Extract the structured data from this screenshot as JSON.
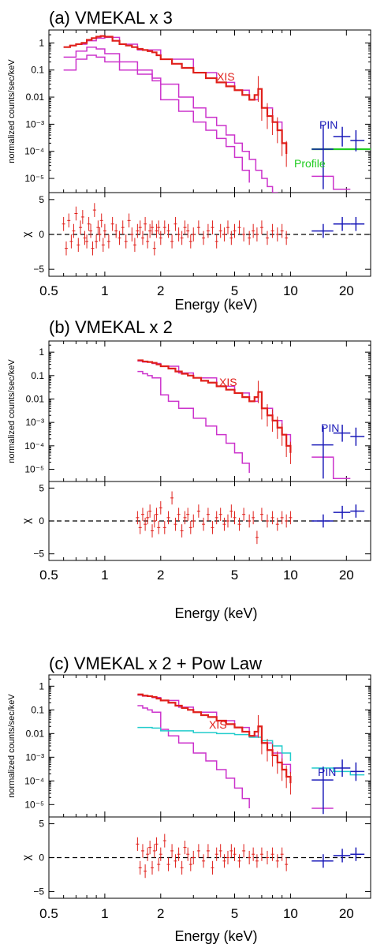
{
  "colors": {
    "xis": "#e0201b",
    "model": "#cc33cc",
    "pin": "#1a1ab8",
    "profile": "#22cc22",
    "powlaw": "#22cccc",
    "axis": "#000000"
  },
  "shared_axes": {
    "x_tick_labels": [
      "0.5",
      "1",
      "2",
      "5",
      "10",
      "20"
    ],
    "xlabel": "Energy (keV)",
    "ylabel_top": "normalized counts/sec/keV",
    "ylabel_bottom": "χ",
    "y_tick_labels_top": [
      "1",
      "0.1",
      "0.01",
      "10⁻³",
      "10⁻⁴",
      "10⁻⁵"
    ],
    "y_tick_labels_bottom": [
      "5",
      "0",
      "−5"
    ]
  },
  "chart_data": [
    {
      "type": "line",
      "title": "(a) VMEKAL x 3",
      "xlabel": "Energy (keV)",
      "ylabel": "normalized counts/sec/keV",
      "xscale": "log",
      "yscale": "log",
      "xlim": [
        0.5,
        27
      ],
      "ylim": [
        3e-06,
        3
      ],
      "annotations": [
        "XIS",
        "PIN",
        "Profile"
      ],
      "xis": {
        "x": [
          0.6,
          0.65,
          0.7,
          0.75,
          0.8,
          0.85,
          0.9,
          0.95,
          1.0,
          1.1,
          1.2,
          1.3,
          1.4,
          1.5,
          1.6,
          1.7,
          1.8,
          1.9,
          2.0,
          2.3,
          2.6,
          3.0,
          3.5,
          4.0,
          4.5,
          5.0,
          5.5,
          6.0,
          6.4,
          6.7,
          7.0,
          7.5,
          8.0,
          8.5,
          9.0,
          9.5
        ],
        "y": [
          0.7,
          0.8,
          0.9,
          1.0,
          1.3,
          1.5,
          1.7,
          1.8,
          1.7,
          1.2,
          0.9,
          0.8,
          0.7,
          0.6,
          0.55,
          0.5,
          0.45,
          0.35,
          0.25,
          0.17,
          0.12,
          0.08,
          0.05,
          0.035,
          0.025,
          0.018,
          0.012,
          0.008,
          0.012,
          0.02,
          0.004,
          0.002,
          0.0012,
          0.0006,
          0.0002,
          8e-05
        ]
      },
      "models": [
        {
          "x": [
            0.6,
            0.65,
            0.7,
            0.8,
            0.9,
            1.0,
            1.2,
            1.5,
            2.0,
            3.0,
            4.0,
            5.0,
            6.0,
            6.7,
            7.0,
            8.0,
            9.0,
            9.5
          ],
          "y": [
            0.7,
            0.8,
            0.9,
            1.2,
            1.5,
            1.6,
            0.9,
            0.55,
            0.25,
            0.08,
            0.035,
            0.018,
            0.008,
            0.02,
            0.004,
            0.0012,
            0.0002,
            8e-05
          ]
        },
        {
          "x": [
            0.6,
            0.7,
            0.8,
            0.9,
            1.0,
            1.2,
            1.5,
            1.8,
            2.0,
            2.5,
            3.0,
            3.5,
            4.0,
            4.5,
            5.0,
            5.5,
            6.0
          ],
          "y": [
            0.3,
            0.5,
            0.7,
            0.6,
            0.4,
            0.2,
            0.1,
            0.05,
            0.008,
            0.003,
            0.0012,
            0.0006,
            0.0003,
            0.00015,
            6e-05,
            2e-05,
            7e-06
          ]
        },
        {
          "x": [
            0.6,
            0.7,
            0.8,
            0.9,
            1.0,
            1.2,
            1.5,
            1.8,
            2.0,
            2.5,
            3.0,
            3.5,
            4.0,
            4.5,
            5.0,
            5.5,
            6.0,
            6.5,
            7.0,
            7.5,
            8.0,
            8.5,
            9.0
          ],
          "y": [
            0.1,
            0.25,
            0.35,
            0.3,
            0.2,
            0.1,
            0.07,
            0.04,
            0.03,
            0.01,
            0.004,
            0.0018,
            0.0009,
            0.0004,
            0.0002,
            0.0001,
            5e-05,
            2e-05,
            1e-05,
            5e-06,
            3e-06,
            2e-06,
            1e-06
          ]
        }
      ],
      "pin": {
        "x": [
          15,
          19,
          22.5
        ],
        "y": [
          0.00012,
          0.00035,
          0.00025
        ],
        "xerr": [
          [
            13,
            17
          ],
          [
            17,
            21
          ],
          [
            21,
            25
          ]
        ],
        "yerr": [
          [
            4e-06,
            0.0009
          ],
          [
            0.00015,
            0.0008
          ],
          [
            0.0001,
            0.0006
          ]
        ]
      },
      "pin_model": {
        "x": [
          13,
          17,
          17,
          21
        ],
        "y": [
          1.2e-05,
          1.2e-05,
          4e-06,
          4e-06
        ]
      },
      "profile": {
        "x": [
          13,
          27
        ],
        "y": [
          0.00012,
          0.00012
        ]
      },
      "residuals": {
        "ylim": [
          -6,
          6
        ],
        "xis_x": [
          0.6,
          0.62,
          0.64,
          0.66,
          0.68,
          0.7,
          0.72,
          0.74,
          0.76,
          0.78,
          0.8,
          0.82,
          0.84,
          0.86,
          0.88,
          0.9,
          0.92,
          0.94,
          0.96,
          0.98,
          1.0,
          1.05,
          1.1,
          1.15,
          1.2,
          1.25,
          1.3,
          1.35,
          1.4,
          1.45,
          1.5,
          1.55,
          1.6,
          1.65,
          1.7,
          1.75,
          1.8,
          1.85,
          1.9,
          1.95,
          2.0,
          2.1,
          2.2,
          2.3,
          2.4,
          2.5,
          2.6,
          2.7,
          2.8,
          2.9,
          3.0,
          3.2,
          3.4,
          3.6,
          3.8,
          4.0,
          4.2,
          4.4,
          4.6,
          4.8,
          5.0,
          5.3,
          5.6,
          6.0,
          6.3,
          6.6,
          7.0,
          7.5,
          8.0,
          8.5,
          9.0,
          9.5
        ],
        "xis_y": [
          1.5,
          -2,
          2,
          -1,
          0.5,
          3,
          -1.5,
          1,
          2.5,
          -0.5,
          -1,
          1.5,
          0.5,
          -2,
          3.5,
          -1,
          1,
          0,
          2,
          -1.5,
          0.5,
          -1,
          1.5,
          0.5,
          -0.5,
          1,
          -1,
          2,
          0,
          -1.5,
          0.5,
          1,
          -0.5,
          1.5,
          -1,
          0.5,
          1,
          -2,
          0.5,
          1,
          -0.5,
          1,
          0.5,
          -1,
          1.5,
          0,
          -0.5,
          1,
          0.5,
          -1,
          0,
          1,
          -0.5,
          0.5,
          1,
          -1,
          0.5,
          0,
          1,
          -0.5,
          0.5,
          1,
          0,
          -0.5,
          0.5,
          0,
          1,
          -0.5,
          0.5,
          0,
          0.5,
          -0.5
        ],
        "pin_x": [
          15,
          19,
          22.5
        ],
        "pin_y": [
          0.5,
          1.5,
          1.5
        ]
      }
    },
    {
      "type": "line",
      "title": "(b) VMEKAL x 2",
      "xlabel": "Energy (keV)",
      "ylabel": "normalized counts/sec/keV",
      "xscale": "log",
      "yscale": "log",
      "xlim": [
        0.5,
        27
      ],
      "ylim": [
        3e-06,
        3
      ],
      "annotations": [
        "XIS",
        "PIN"
      ],
      "xis": {
        "x": [
          1.5,
          1.6,
          1.7,
          1.8,
          1.9,
          2.0,
          2.2,
          2.4,
          2.6,
          2.8,
          3.0,
          3.3,
          3.6,
          4.0,
          4.5,
          5.0,
          5.5,
          6.0,
          6.4,
          6.7,
          7.0,
          7.5,
          8.0,
          8.5,
          9.0,
          9.5,
          10.0
        ],
        "y": [
          0.45,
          0.4,
          0.38,
          0.35,
          0.3,
          0.25,
          0.2,
          0.15,
          0.12,
          0.1,
          0.08,
          0.06,
          0.05,
          0.035,
          0.025,
          0.018,
          0.012,
          0.008,
          0.012,
          0.02,
          0.004,
          0.002,
          0.0012,
          0.0006,
          0.0003,
          0.0001,
          5e-05
        ]
      },
      "models": [
        {
          "x": [
            1.5,
            1.6,
            1.8,
            2.0,
            2.5,
            3.0,
            4.0,
            5.0,
            6.0,
            6.7,
            7.0,
            8.0,
            9.0,
            10.0
          ],
          "y": [
            0.42,
            0.38,
            0.33,
            0.25,
            0.13,
            0.08,
            0.035,
            0.018,
            0.008,
            0.02,
            0.004,
            0.0012,
            0.0003,
            5e-05
          ]
        },
        {
          "x": [
            1.5,
            1.6,
            1.7,
            1.8,
            2.0,
            2.2,
            2.5,
            3.0,
            3.5,
            4.0,
            4.5,
            5.0,
            5.5,
            6.0
          ],
          "y": [
            0.15,
            0.12,
            0.1,
            0.08,
            0.015,
            0.008,
            0.004,
            0.0015,
            0.0007,
            0.0003,
            0.00013,
            5e-05,
            1.8e-05,
            7e-06
          ]
        }
      ],
      "pin": {
        "x": [
          15,
          19,
          22.5
        ],
        "y": [
          0.00011,
          0.00035,
          0.00025
        ],
        "xerr": [
          [
            13,
            17
          ],
          [
            17,
            21
          ],
          [
            21,
            25
          ]
        ],
        "yerr": [
          [
            4e-06,
            0.0007
          ],
          [
            0.00015,
            0.0008
          ],
          [
            0.0001,
            0.0006
          ]
        ]
      },
      "pin_model": {
        "x": [
          13,
          17,
          17,
          21
        ],
        "y": [
          3.3e-05,
          3.3e-05,
          4e-06,
          4e-06
        ]
      },
      "residuals": {
        "ylim": [
          -6,
          6
        ],
        "xis_x": [
          1.5,
          1.55,
          1.6,
          1.65,
          1.7,
          1.75,
          1.8,
          1.85,
          1.9,
          1.95,
          2.0,
          2.1,
          2.2,
          2.3,
          2.4,
          2.5,
          2.6,
          2.7,
          2.8,
          2.9,
          3.0,
          3.2,
          3.4,
          3.6,
          3.8,
          4.0,
          4.2,
          4.4,
          4.6,
          4.8,
          5.0,
          5.3,
          5.6,
          6.0,
          6.3,
          6.6,
          7.0,
          7.5,
          8.0,
          8.5,
          9.0,
          9.5,
          10.0
        ],
        "xis_y": [
          0.5,
          -1,
          1,
          -0.5,
          0.5,
          1.5,
          -1.5,
          0,
          1,
          -1,
          2,
          -1,
          0.5,
          3.5,
          -0.5,
          1,
          -1.5,
          0.5,
          1,
          -1,
          0,
          1.5,
          -0.5,
          1,
          -1,
          0.5,
          1,
          -0.5,
          0,
          1.5,
          0.5,
          -0.5,
          1,
          0,
          0.5,
          -2.5,
          1,
          0,
          0.5,
          -0.5,
          0.5,
          0,
          0.5
        ],
        "pin_x": [
          15,
          19,
          22.5
        ],
        "pin_y": [
          0.0,
          1.3,
          1.5
        ]
      }
    },
    {
      "type": "line",
      "title": "(c) VMEKAL x 2 + Pow Law",
      "xlabel": "Energy (keV)",
      "ylabel": "normalized counts/sec/keV",
      "xscale": "log",
      "yscale": "log",
      "xlim": [
        0.5,
        27
      ],
      "ylim": [
        3e-06,
        3
      ],
      "annotations": [
        "XIS",
        "PIN"
      ],
      "xis": {
        "x": [
          1.5,
          1.6,
          1.7,
          1.8,
          1.9,
          2.0,
          2.2,
          2.4,
          2.6,
          2.8,
          3.0,
          3.3,
          3.6,
          4.0,
          4.5,
          5.0,
          5.5,
          6.0,
          6.4,
          6.7,
          7.0,
          7.5,
          8.0,
          8.5,
          9.0,
          9.5,
          10.0
        ],
        "y": [
          0.45,
          0.4,
          0.38,
          0.35,
          0.3,
          0.25,
          0.2,
          0.15,
          0.12,
          0.1,
          0.08,
          0.06,
          0.05,
          0.035,
          0.025,
          0.018,
          0.012,
          0.008,
          0.012,
          0.02,
          0.004,
          0.002,
          0.0012,
          0.0006,
          0.0003,
          0.00015,
          8e-05
        ]
      },
      "models": [
        {
          "x": [
            1.5,
            1.6,
            1.8,
            2.0,
            2.5,
            3.0,
            4.0,
            5.0,
            6.0,
            6.7,
            7.0,
            8.0,
            9.0,
            10.0
          ],
          "y": [
            0.42,
            0.38,
            0.33,
            0.25,
            0.13,
            0.08,
            0.035,
            0.018,
            0.008,
            0.02,
            0.004,
            0.0015,
            0.0005,
            0.0002
          ]
        },
        {
          "x": [
            1.5,
            1.6,
            1.7,
            1.8,
            2.0,
            2.2,
            2.5,
            3.0,
            3.5,
            4.0,
            4.5,
            5.0,
            5.5,
            6.0
          ],
          "y": [
            0.15,
            0.12,
            0.1,
            0.08,
            0.015,
            0.008,
            0.004,
            0.0015,
            0.0007,
            0.0003,
            0.00013,
            5e-05,
            1.8e-05,
            7e-06
          ]
        }
      ],
      "powlaw": {
        "x": [
          1.5,
          1.8,
          2.0,
          3.0,
          4.0,
          5.0,
          6.0,
          7.0,
          8.0,
          9.0,
          10.0
        ],
        "y": [
          0.018,
          0.017,
          0.013,
          0.011,
          0.01,
          0.009,
          0.007,
          0.005,
          0.003,
          0.0015,
          0.0007
        ]
      },
      "powlaw_pin": {
        "x": [
          13,
          17,
          17,
          21,
          21,
          25
        ],
        "y": [
          0.00035,
          0.00035,
          0.00025,
          0.00025,
          0.00018,
          0.00018
        ]
      },
      "pin": {
        "x": [
          15,
          19,
          22.5
        ],
        "y": [
          0.00011,
          0.00035,
          0.00025
        ],
        "xerr": [
          [
            13,
            17
          ],
          [
            17,
            21
          ],
          [
            21,
            25
          ]
        ],
        "yerr": [
          [
            4e-06,
            0.0004
          ],
          [
            0.00015,
            0.0008
          ],
          [
            0.0001,
            0.0006
          ]
        ]
      },
      "pin_model": {
        "x": [
          13,
          17
        ],
        "y": [
          7e-06,
          7e-06
        ]
      },
      "residuals": {
        "ylim": [
          -6,
          6
        ],
        "xis_x": [
          1.5,
          1.55,
          1.6,
          1.65,
          1.7,
          1.75,
          1.8,
          1.85,
          1.9,
          1.95,
          2.0,
          2.1,
          2.2,
          2.3,
          2.4,
          2.5,
          2.6,
          2.7,
          2.8,
          2.9,
          3.0,
          3.2,
          3.4,
          3.6,
          3.8,
          4.0,
          4.2,
          4.4,
          4.6,
          4.8,
          5.0,
          5.3,
          5.6,
          6.0,
          6.3,
          6.6,
          7.0,
          7.5,
          8.0,
          8.5,
          9.0,
          9.5
        ],
        "xis_y": [
          2,
          -1.5,
          1,
          -2,
          0.5,
          1.5,
          -1.5,
          1,
          2,
          -1,
          0.5,
          2.5,
          -1,
          1,
          -0.5,
          0.5,
          -1.5,
          1.5,
          0.5,
          -1,
          0,
          1,
          -0.5,
          1,
          -1.5,
          0.5,
          1,
          -0.5,
          0,
          1,
          0.5,
          -0.5,
          1,
          0,
          0.5,
          -0.5,
          0.5,
          0,
          0.5,
          -0.5,
          0.5,
          -1
        ],
        "pin_x": [
          15,
          19,
          22.5
        ],
        "pin_y": [
          -0.5,
          0.3,
          0.5
        ]
      }
    }
  ]
}
